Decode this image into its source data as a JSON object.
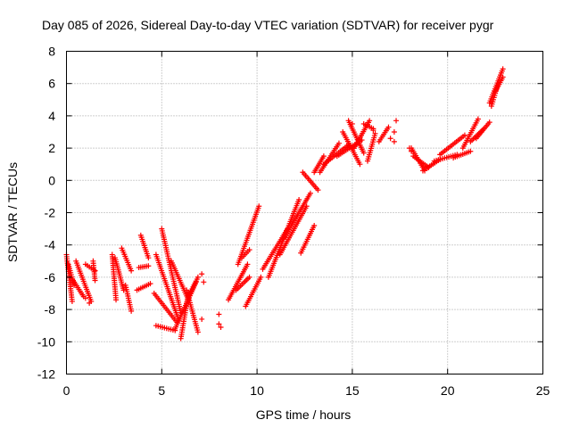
{
  "chart_data": {
    "type": "scatter",
    "title": "Day 085 of 2026, Sidereal Day-to-day VTEC variation (SDTVAR) for receiver pygr",
    "xlabel": "GPS time / hours",
    "ylabel": "SDTVAR / TECUs",
    "xlim": [
      0,
      25
    ],
    "ylim": [
      -12,
      8
    ],
    "xticks": [
      0,
      5,
      10,
      15,
      20,
      25
    ],
    "yticks": [
      -12,
      -10,
      -8,
      -6,
      -4,
      -2,
      0,
      2,
      4,
      6,
      8
    ],
    "grid": true,
    "marker": "+",
    "color": "#ff0000",
    "segments": [
      {
        "x0": 0.0,
        "y0": -4.6,
        "x1": 0.3,
        "y1": -7.5
      },
      {
        "x0": 0.1,
        "y0": -5.2,
        "x1": 0.4,
        "y1": -6.5
      },
      {
        "x0": 0.35,
        "y0": -6.2,
        "x1": 0.9,
        "y1": -7.2
      },
      {
        "x0": 0.5,
        "y0": -5.0,
        "x1": 1.3,
        "y1": -7.5
      },
      {
        "x0": 1.0,
        "y0": -5.2,
        "x1": 1.5,
        "y1": -5.6
      },
      {
        "x0": 1.4,
        "y0": -5.0,
        "x1": 1.5,
        "y1": -6.2
      },
      {
        "x0": 2.4,
        "y0": -4.6,
        "x1": 2.6,
        "y1": -7.4
      },
      {
        "x0": 2.55,
        "y0": -4.8,
        "x1": 3.0,
        "y1": -6.8
      },
      {
        "x0": 2.9,
        "y0": -4.2,
        "x1": 3.4,
        "y1": -5.6
      },
      {
        "x0": 3.1,
        "y0": -6.5,
        "x1": 3.4,
        "y1": -8.1
      },
      {
        "x0": 3.7,
        "y0": -6.8,
        "x1": 4.4,
        "y1": -6.4
      },
      {
        "x0": 3.8,
        "y0": -5.4,
        "x1": 4.3,
        "y1": -5.3
      },
      {
        "x0": 3.9,
        "y0": -3.4,
        "x1": 4.3,
        "y1": -4.8
      },
      {
        "x0": 4.6,
        "y0": -7.0,
        "x1": 5.8,
        "y1": -8.8
      },
      {
        "x0": 4.7,
        "y0": -4.6,
        "x1": 5.9,
        "y1": -8.7
      },
      {
        "x0": 4.7,
        "y0": -9.0,
        "x1": 5.7,
        "y1": -9.3
      },
      {
        "x0": 5.0,
        "y0": -3.0,
        "x1": 6.0,
        "y1": -8.2
      },
      {
        "x0": 5.5,
        "y0": -5.0,
        "x1": 6.4,
        "y1": -7.4
      },
      {
        "x0": 5.7,
        "y0": -9.2,
        "x1": 6.8,
        "y1": -6.3
      },
      {
        "x0": 6.0,
        "y0": -9.8,
        "x1": 6.4,
        "y1": -7.0
      },
      {
        "x0": 6.3,
        "y0": -6.8,
        "x1": 6.9,
        "y1": -9.4
      },
      {
        "x0": 6.4,
        "y0": -7.2,
        "x1": 6.9,
        "y1": -6.0
      },
      {
        "x0": 8.5,
        "y0": -7.4,
        "x1": 9.5,
        "y1": -5.2
      },
      {
        "x0": 8.9,
        "y0": -6.8,
        "x1": 9.6,
        "y1": -6.0
      },
      {
        "x0": 9.0,
        "y0": -5.2,
        "x1": 10.1,
        "y1": -1.6
      },
      {
        "x0": 9.4,
        "y0": -7.8,
        "x1": 10.2,
        "y1": -6.0
      },
      {
        "x0": 9.2,
        "y0": -4.8,
        "x1": 9.6,
        "y1": -4.3
      },
      {
        "x0": 10.3,
        "y0": -5.5,
        "x1": 11.6,
        "y1": -3.0
      },
      {
        "x0": 10.6,
        "y0": -6.0,
        "x1": 12.2,
        "y1": -1.2
      },
      {
        "x0": 11.2,
        "y0": -4.6,
        "x1": 12.6,
        "y1": -1.6
      },
      {
        "x0": 11.4,
        "y0": -3.6,
        "x1": 12.8,
        "y1": -0.8
      },
      {
        "x0": 12.3,
        "y0": -4.5,
        "x1": 13.0,
        "y1": -2.8
      },
      {
        "x0": 12.4,
        "y0": 0.5,
        "x1": 13.2,
        "y1": -0.6
      },
      {
        "x0": 13.0,
        "y0": 0.5,
        "x1": 13.5,
        "y1": 1.5
      },
      {
        "x0": 13.3,
        "y0": 0.5,
        "x1": 14.3,
        "y1": 2.3
      },
      {
        "x0": 13.5,
        "y0": 1.0,
        "x1": 14.8,
        "y1": 2.2
      },
      {
        "x0": 14.2,
        "y0": 1.5,
        "x1": 15.5,
        "y1": 2.5
      },
      {
        "x0": 14.5,
        "y0": 3.0,
        "x1": 15.4,
        "y1": 1.0
      },
      {
        "x0": 14.8,
        "y0": 3.7,
        "x1": 15.6,
        "y1": 1.7
      },
      {
        "x0": 15.1,
        "y0": 2.0,
        "x1": 15.9,
        "y1": 3.7
      },
      {
        "x0": 15.8,
        "y0": 1.2,
        "x1": 16.2,
        "y1": 2.9
      },
      {
        "x0": 15.6,
        "y0": 3.5,
        "x1": 16.1,
        "y1": 3.2
      },
      {
        "x0": 16.4,
        "y0": 2.4,
        "x1": 16.9,
        "y1": 3.3
      },
      {
        "x0": 18.1,
        "y0": 2.0,
        "x1": 18.8,
        "y1": 0.6
      },
      {
        "x0": 18.2,
        "y0": 1.5,
        "x1": 19.0,
        "y1": 0.8
      },
      {
        "x0": 18.7,
        "y0": 0.6,
        "x1": 19.6,
        "y1": 1.3
      },
      {
        "x0": 19.3,
        "y0": 1.2,
        "x1": 20.5,
        "y1": 1.6
      },
      {
        "x0": 19.6,
        "y0": 1.6,
        "x1": 20.9,
        "y1": 2.8
      },
      {
        "x0": 20.3,
        "y0": 1.4,
        "x1": 21.2,
        "y1": 1.8
      },
      {
        "x0": 20.8,
        "y0": 2.0,
        "x1": 21.6,
        "y1": 3.8
      },
      {
        "x0": 21.2,
        "y0": 2.4,
        "x1": 21.9,
        "y1": 3.2
      },
      {
        "x0": 21.5,
        "y0": 2.6,
        "x1": 22.2,
        "y1": 3.6
      },
      {
        "x0": 22.2,
        "y0": 4.8,
        "x1": 22.9,
        "y1": 6.9
      },
      {
        "x0": 22.3,
        "y0": 4.6,
        "x1": 22.6,
        "y1": 5.8
      },
      {
        "x0": 22.5,
        "y0": 5.5,
        "x1": 22.9,
        "y1": 6.4
      }
    ],
    "isolated_points": [
      {
        "x": 1.2,
        "y": -7.6
      },
      {
        "x": 1.0,
        "y": -7.3
      },
      {
        "x": 7.1,
        "y": -5.8
      },
      {
        "x": 7.2,
        "y": -6.3
      },
      {
        "x": 7.1,
        "y": -8.6
      },
      {
        "x": 8.0,
        "y": -8.3
      },
      {
        "x": 8.1,
        "y": -9.1
      },
      {
        "x": 8.0,
        "y": -8.9
      },
      {
        "x": 15.0,
        "y": 3.5
      },
      {
        "x": 16.1,
        "y": 3.1
      },
      {
        "x": 17.0,
        "y": 2.6
      },
      {
        "x": 17.2,
        "y": 2.4
      },
      {
        "x": 17.3,
        "y": 3.7
      },
      {
        "x": 17.2,
        "y": 3.0
      },
      {
        "x": 18.1,
        "y": 1.8
      },
      {
        "x": 18.0,
        "y": 2.0
      }
    ]
  }
}
